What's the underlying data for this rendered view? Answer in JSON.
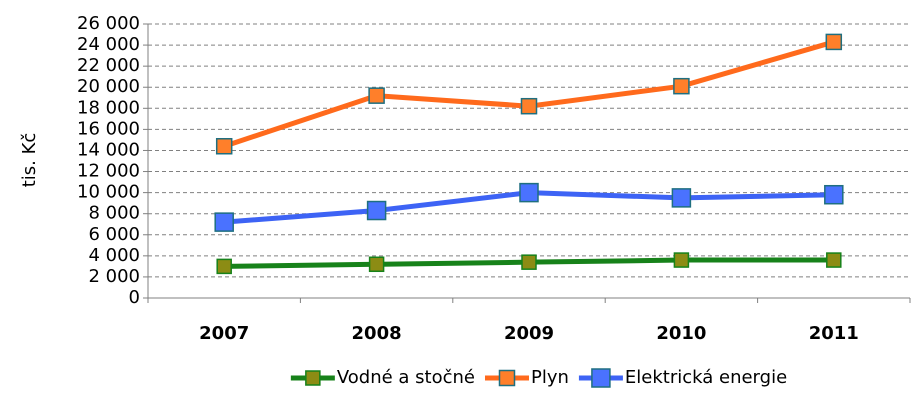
{
  "chart_data": {
    "type": "line",
    "y_label": "tis. Kč",
    "categories": [
      "2007",
      "2008",
      "2009",
      "2010",
      "2011"
    ],
    "series": [
      {
        "name": "Vodné a stočné",
        "color": "#17821a",
        "marker_color": "#8c8c14",
        "marker_edge": "#17821a",
        "values": [
          3000,
          3200,
          3400,
          3600,
          3600
        ]
      },
      {
        "name": "Plyn",
        "color": "#ff6a1c",
        "marker_color": "#ff7f2a",
        "marker_edge": "#1f6f80",
        "values": [
          14400,
          19200,
          18200,
          20100,
          24300
        ]
      },
      {
        "name": "Elektrická energie",
        "color": "#3d63f5",
        "marker_color": "#4a72ff",
        "marker_edge": "#1f6f80",
        "values": [
          7200,
          8300,
          10000,
          9500,
          9800
        ]
      }
    ],
    "ylim": [
      0,
      26000
    ],
    "yticks": [
      0,
      {
        "value": 2000,
        "label": "2 000"
      },
      {
        "value": 4000,
        "label": "4 000"
      },
      {
        "value": 6000,
        "label": "6 000"
      },
      {
        "value": 8000,
        "label": "8 000"
      },
      {
        "value": 10000,
        "label": "10 000"
      },
      {
        "value": 12000,
        "label": "12 000"
      },
      {
        "value": 14000,
        "label": "14 000"
      },
      {
        "value": 16000,
        "label": "16 000"
      },
      {
        "value": 18000,
        "label": "18 000"
      },
      {
        "value": 20000,
        "label": "20 000"
      },
      {
        "value": 22000,
        "label": "22 000"
      },
      {
        "value": 24000,
        "label": "24 000"
      },
      {
        "value": 26000,
        "label": "26 000"
      }
    ],
    "grid": true,
    "legend": "bottom"
  }
}
